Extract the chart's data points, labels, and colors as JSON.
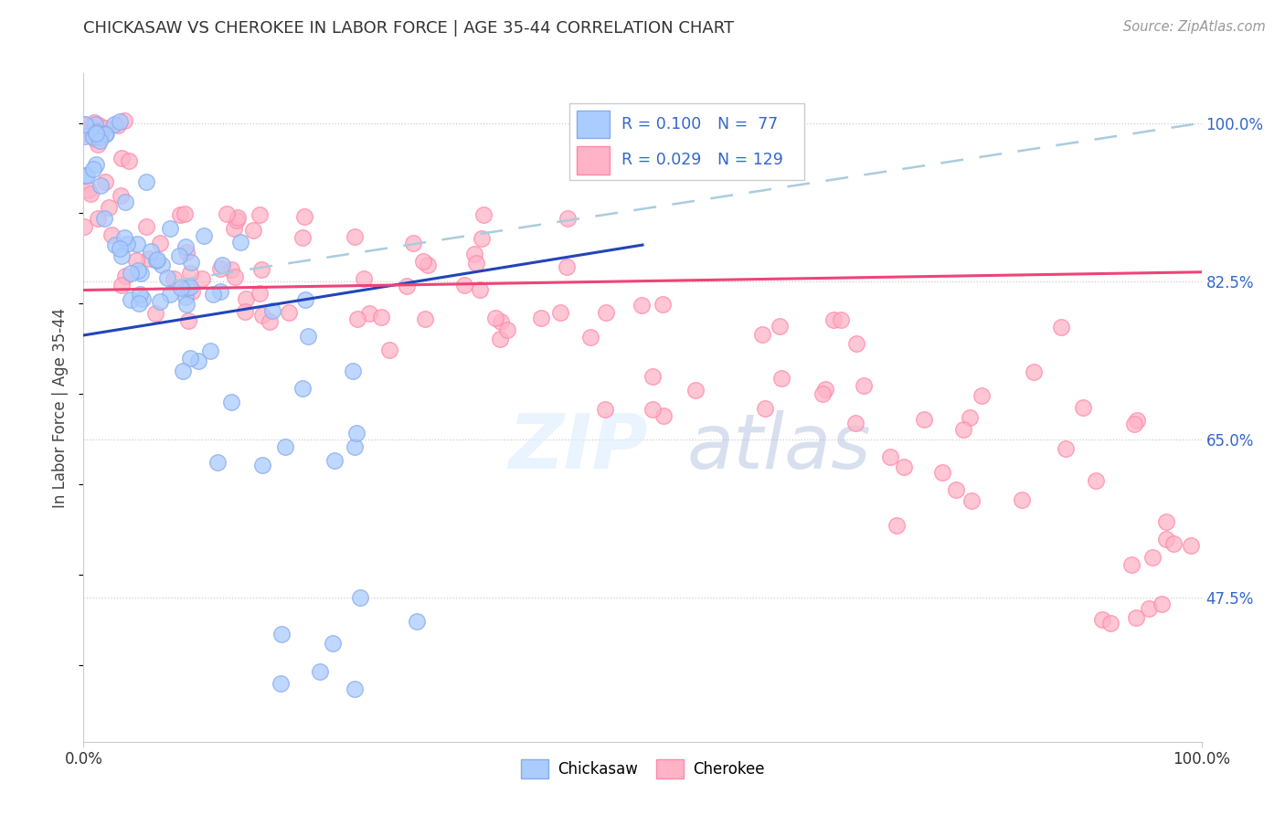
{
  "title": "CHICKASAW VS CHEROKEE IN LABOR FORCE | AGE 35-44 CORRELATION CHART",
  "source": "Source: ZipAtlas.com",
  "ylabel": "In Labor Force | Age 35-44",
  "ytick_values": [
    1.0,
    0.825,
    0.65,
    0.475
  ],
  "ytick_labels": [
    "100.0%",
    "82.5%",
    "65.0%",
    "47.5%"
  ],
  "xlim": [
    0.0,
    1.0
  ],
  "ylim": [
    0.315,
    1.055
  ],
  "legend_entries": [
    {
      "color": "#AACCFF",
      "edge": "#88AAEE",
      "r": "R = 0.100",
      "n": "N =  77"
    },
    {
      "color": "#FFB3C6",
      "edge": "#FF88AA",
      "r": "R = 0.029",
      "n": "N = 129"
    }
  ],
  "blue_line": {
    "x0": 0.0,
    "y0": 0.765,
    "x1": 0.5,
    "y1": 0.865
  },
  "pink_line": {
    "x0": 0.0,
    "y0": 0.815,
    "x1": 1.0,
    "y1": 0.835
  },
  "dash_line": {
    "x0": 0.08,
    "y0": 0.825,
    "x1": 1.0,
    "y1": 1.0
  },
  "blue_color": "#AACCFF",
  "blue_edge": "#88AAEE",
  "pink_color": "#FFB3C6",
  "pink_edge": "#FF88AA",
  "blue_line_color": "#2244BB",
  "pink_line_color": "#EE4477",
  "dash_line_color": "#AACCDD",
  "label_color": "#3366CC",
  "grid_color": "#CCCCCC",
  "watermark_zip": "ZIP",
  "watermark_atlas": "atlas"
}
